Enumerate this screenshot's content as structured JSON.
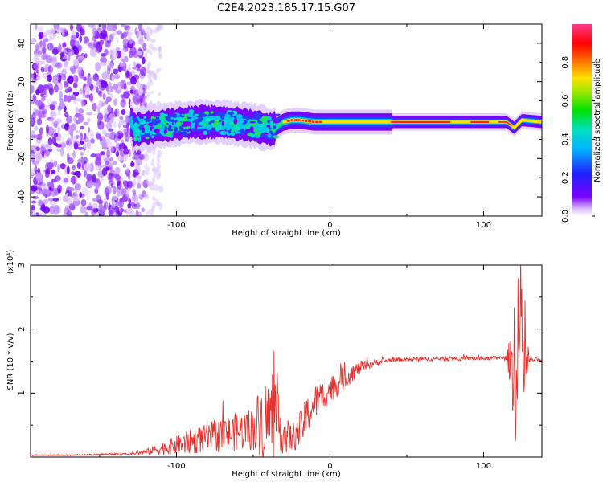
{
  "title": "C2E4.2023.185.17.15.G07",
  "colors": {
    "snr_line": "#e8302c",
    "background": "#ffffff",
    "axis": "#000000"
  },
  "chart_data": [
    {
      "type": "heatmap",
      "xlabel": "Height of straight line (km)",
      "ylabel": "Frequency (Hz)",
      "xlim": [
        -195,
        138
      ],
      "ylim": [
        -50,
        50
      ],
      "x_ticks": [
        {
          "value": -100,
          "label": "-100"
        },
        {
          "value": 0,
          "label": "0"
        },
        {
          "value": 100,
          "label": "100"
        }
      ],
      "y_ticks": [
        {
          "value": 40,
          "label": "40"
        },
        {
          "value": 20,
          "label": "20"
        },
        {
          "value": 0,
          "label": "0"
        },
        {
          "value": -20,
          "label": "-20"
        },
        {
          "value": -40,
          "label": "-40"
        }
      ],
      "colorbar": {
        "label": "Normalized spectral amplitude",
        "range": [
          0,
          1
        ],
        "colormap": "rainbow (white-violet-blue-cyan-green-yellow-red-pink)",
        "ticks": [
          {
            "value": 0.0,
            "label": "0.0"
          },
          {
            "value": 0.2,
            "label": "0.2"
          },
          {
            "value": 0.4,
            "label": "0.4"
          },
          {
            "value": 0.6,
            "label": "0.6"
          },
          {
            "value": 0.8,
            "label": "0.8"
          }
        ]
      },
      "ridge": {
        "points": [
          [
            -128,
            -5
          ],
          [
            -110,
            -3
          ],
          [
            -90,
            -1
          ],
          [
            -70,
            -1
          ],
          [
            -50,
            -3
          ],
          [
            -38,
            -5
          ],
          [
            -30,
            -1
          ],
          [
            -25,
            0
          ],
          [
            -20,
            0
          ],
          [
            -10,
            -1
          ],
          [
            0,
            -1
          ],
          [
            20,
            -1
          ],
          [
            50,
            -1
          ],
          [
            75,
            -1
          ],
          [
            85,
            -1
          ],
          [
            100,
            -1
          ],
          [
            115,
            -1
          ],
          [
            120,
            -4
          ],
          [
            125,
            0
          ],
          [
            138,
            -1
          ]
        ]
      }
    },
    {
      "type": "line",
      "xlabel": "Height of straight line (km)",
      "ylabel": "SNR (10 * v/v)",
      "y_scale_label": "(x10⁴)",
      "xlim": [
        -195,
        138
      ],
      "ylim": [
        0,
        3
      ],
      "x_ticks": [
        {
          "value": -100,
          "label": "-100"
        },
        {
          "value": 0,
          "label": "0"
        },
        {
          "value": 100,
          "label": "100"
        }
      ],
      "y_ticks": [
        {
          "value": 1,
          "label": "1"
        },
        {
          "value": 2,
          "label": "2"
        },
        {
          "value": 3,
          "label": "3"
        }
      ],
      "series": [
        {
          "color": "#e8302c",
          "envelope": {
            "x": [
              -195,
              -170,
              -150,
              -130,
              -120,
              -110,
              -100,
              -90,
              -80,
              -70,
              -60,
              -50,
              -45,
              -40,
              -35,
              -30,
              -25,
              -20,
              -15,
              -10,
              -5,
              0,
              5,
              10,
              20,
              30,
              40,
              60,
              80,
              100,
              110,
              115,
              118,
              120,
              122,
              124,
              126,
              130,
              138
            ],
            "y": [
              0.03,
              0.03,
              0.04,
              0.05,
              0.08,
              0.13,
              0.18,
              0.24,
              0.3,
              0.35,
              0.4,
              0.45,
              0.55,
              0.6,
              0.55,
              0.35,
              0.3,
              0.4,
              0.65,
              0.85,
              0.95,
              1.05,
              1.15,
              1.25,
              1.4,
              1.48,
              1.52,
              1.53,
              1.54,
              1.54,
              1.55,
              1.55,
              1.5,
              1.6,
              0.8,
              2.4,
              1.3,
              1.52,
              1.52
            ],
            "noise": [
              0.01,
              0.01,
              0.01,
              0.02,
              0.04,
              0.1,
              0.15,
              0.2,
              0.22,
              0.28,
              0.3,
              0.35,
              0.6,
              0.7,
              0.55,
              0.3,
              0.22,
              0.28,
              0.3,
              0.28,
              0.25,
              0.22,
              0.2,
              0.18,
              0.1,
              0.05,
              0.03,
              0.03,
              0.03,
              0.03,
              0.03,
              0.04,
              0.5,
              1.2,
              1.0,
              0.9,
              0.6,
              0.04,
              0.03
            ]
          }
        }
      ]
    }
  ]
}
